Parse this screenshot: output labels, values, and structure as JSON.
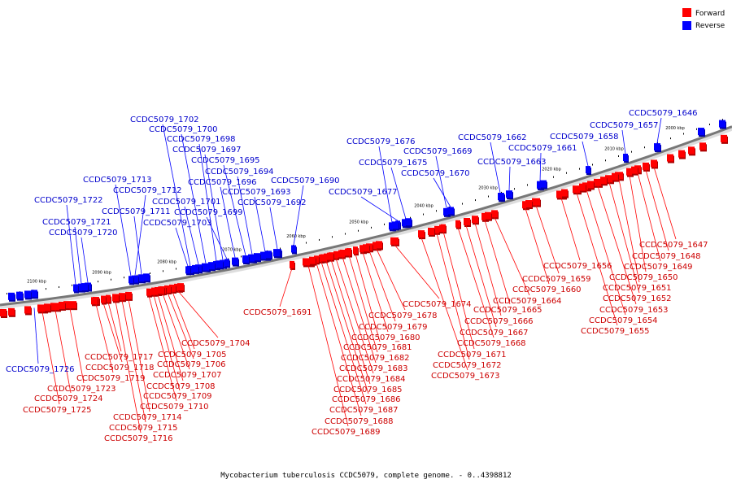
{
  "legend": {
    "forward": {
      "label": "Forward",
      "color": "#ff0000"
    },
    "reverse": {
      "label": "Reverse",
      "color": "#0000ff"
    }
  },
  "caption": "Mycobacterium tuberculosis CCDC5079, complete genome. - 0..4398812",
  "scale_labels": [
    "2000 kbp",
    "2010 kbp",
    "2020 kbp",
    "2030 kbp",
    "2040 kbp",
    "2050 kbp",
    "2060 kbp",
    "2070 kbp",
    "2080 kbp",
    "2090 kbp",
    "2100 kbp"
  ],
  "reverse_genes": [
    "CCDC5079_1646",
    "CCDC5079_1657",
    "CCDC5079_1658",
    "CCDC5079_1661",
    "CCDC5079_1662",
    "CCDC5079_1663",
    "CCDC5079_1669",
    "CCDC5079_1670",
    "CCDC5079_1675",
    "CCDC5079_1676",
    "CCDC5079_1677",
    "CCDC5079_1690",
    "CCDC5079_1692",
    "CCDC5079_1693",
    "CCDC5079_1694",
    "CCDC5079_1695",
    "CCDC5079_1696",
    "CCDC5079_1697",
    "CCDC5079_1698",
    "CCDC5079_1699",
    "CCDC5079_1700",
    "CCDC5079_1701",
    "CCDC5079_1702",
    "CCDC5079_1703",
    "CCDC5079_1711",
    "CCDC5079_1712",
    "CCDC5079_1713",
    "CCDC5079_1720",
    "CCDC5079_1721",
    "CCDC5079_1722",
    "CCDC5079_1726"
  ],
  "forward_genes": [
    "CCDC5079_1647",
    "CCDC5079_1648",
    "CCDC5079_1649",
    "CCDC5079_1650",
    "CCDC5079_1651",
    "CCDC5079_1652",
    "CCDC5079_1653",
    "CCDC5079_1654",
    "CCDC5079_1655",
    "CCDC5079_1656",
    "CCDC5079_1659",
    "CCDC5079_1660",
    "CCDC5079_1664",
    "CCDC5079_1665",
    "CCDC5079_1666",
    "CCDC5079_1667",
    "CCDC5079_1668",
    "CCDC5079_1671",
    "CCDC5079_1672",
    "CCDC5079_1673",
    "CCDC5079_1674",
    "CCDC5079_1678",
    "CCDC5079_1679",
    "CCDC5079_1680",
    "CCDC5079_1681",
    "CCDC5079_1682",
    "CCDC5079_1683",
    "CCDC5079_1684",
    "CCDC5079_1685",
    "CCDC5079_1686",
    "CCDC5079_1687",
    "CCDC5079_1688",
    "CCDC5079_1689",
    "CCDC5079_1691",
    "CCDC5079_1704",
    "CCDC5079_1705",
    "CCDC5079_1706",
    "CCDC5079_1707",
    "CCDC5079_1708",
    "CCDC5079_1709",
    "CCDC5079_1710",
    "CCDC5079_1714",
    "CCDC5079_1715",
    "CCDC5079_1716",
    "CCDC5079_1717",
    "CCDC5079_1718",
    "CCDC5079_1719",
    "CCDC5079_1723",
    "CCDC5079_1724",
    "CCDC5079_1725"
  ]
}
